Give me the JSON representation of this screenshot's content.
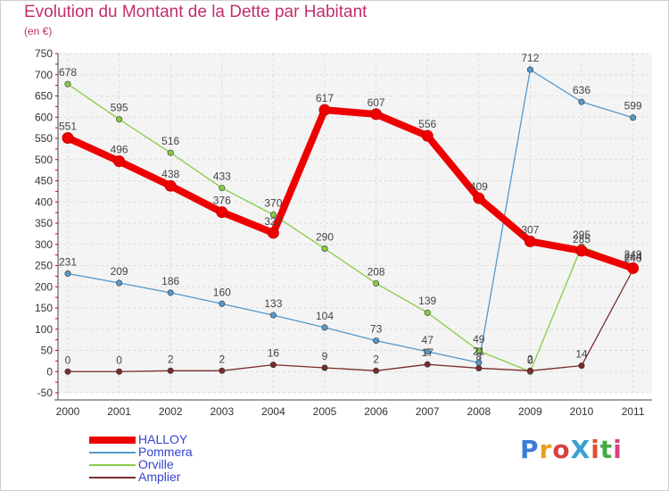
{
  "title": "Evolution du Montant de la Dette par Habitant",
  "subtitle": "(en €)",
  "logo": "ProXiti",
  "chart_data": {
    "type": "line",
    "title": "Evolution du Montant de la Dette par Habitant",
    "subtitle": "(en €)",
    "x": [
      "2000",
      "2001",
      "2002",
      "2003",
      "2004",
      "2005",
      "2006",
      "2007",
      "2008",
      "2009",
      "2010",
      "2011"
    ],
    "ylim": [
      -50,
      750
    ],
    "yticks": [
      "-50",
      "0",
      "50",
      "100",
      "150",
      "200",
      "250",
      "300",
      "350",
      "400",
      "450",
      "500",
      "550",
      "600",
      "650",
      "700",
      "750"
    ],
    "grid": true,
    "legend": "bottom-left",
    "series": [
      {
        "name": "HALLOY",
        "color": "#ee0000",
        "values": [
          551,
          496,
          438,
          376,
          327,
          617,
          607,
          556,
          409,
          307,
          285,
          244
        ]
      },
      {
        "name": "Pommera",
        "color": "#5599cc",
        "values": [
          231,
          209,
          186,
          160,
          133,
          104,
          73,
          47,
          21,
          712,
          636,
          599
        ]
      },
      {
        "name": "Orville",
        "color": "#88cc44",
        "values": [
          678,
          595,
          516,
          433,
          370,
          290,
          208,
          139,
          49,
          0,
          295,
          249
        ]
      },
      {
        "name": "Amplier",
        "color": "#7a2b2b",
        "values": [
          0,
          0,
          2,
          2,
          16,
          9,
          2,
          17,
          8,
          2,
          14,
          240
        ]
      }
    ]
  }
}
